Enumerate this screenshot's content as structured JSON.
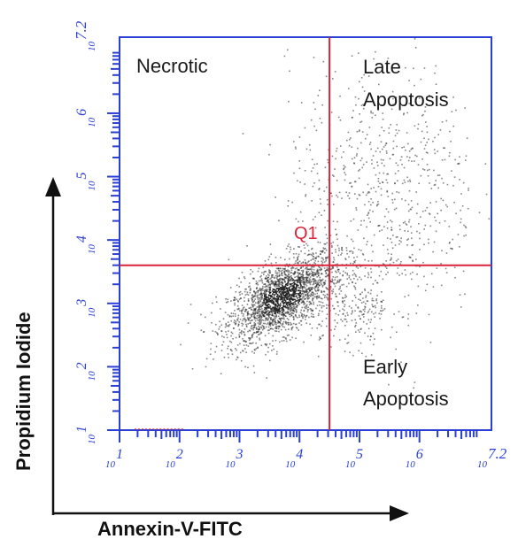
{
  "chart_data": {
    "type": "scatter",
    "title": "",
    "xlabel": "Annexin-V-FITC",
    "ylabel": "Propidium Iodide",
    "x_scale": "log",
    "y_scale": "log",
    "xlim": [
      1,
      7.2
    ],
    "ylim": [
      1,
      7.2
    ],
    "x_ticks": [
      {
        "base": "10",
        "exp": "1"
      },
      {
        "base": "10",
        "exp": "2"
      },
      {
        "base": "10",
        "exp": "3"
      },
      {
        "base": "10",
        "exp": "4"
      },
      {
        "base": "10",
        "exp": "5"
      },
      {
        "base": "10",
        "exp": "6"
      },
      {
        "base": "10",
        "exp": "7.2"
      }
    ],
    "y_ticks": [
      {
        "base": "10",
        "exp": "1"
      },
      {
        "base": "10",
        "exp": "2"
      },
      {
        "base": "10",
        "exp": "3"
      },
      {
        "base": "10",
        "exp": "4"
      },
      {
        "base": "10",
        "exp": "5"
      },
      {
        "base": "10",
        "exp": "6"
      },
      {
        "base": "10",
        "exp": "7.2"
      }
    ],
    "quadrant_gate": {
      "label": "Q1",
      "x": 4.5,
      "y": 3.6
    },
    "quadrant_labels": {
      "upper_left": [
        "Necrotic"
      ],
      "upper_right": [
        "Late",
        "Apoptosis"
      ],
      "lower_right": [
        "Early",
        "Apoptosis"
      ]
    },
    "populations": [
      {
        "description": "main dense cluster",
        "center": [
          3.7,
          3.1
        ],
        "spread": [
          0.45,
          0.38
        ],
        "count": 2200
      },
      {
        "description": "late apoptotic scatter",
        "center": [
          5.4,
          4.8
        ],
        "spread": [
          0.8,
          1.0
        ],
        "count": 700
      },
      {
        "description": "early apoptotic scatter",
        "center": [
          4.9,
          3.0
        ],
        "spread": [
          0.4,
          0.35
        ],
        "count": 250
      }
    ],
    "colors": {
      "axis": "#2a3fd6",
      "gate": "#d9253b",
      "points": "#222222"
    },
    "grid": false
  }
}
